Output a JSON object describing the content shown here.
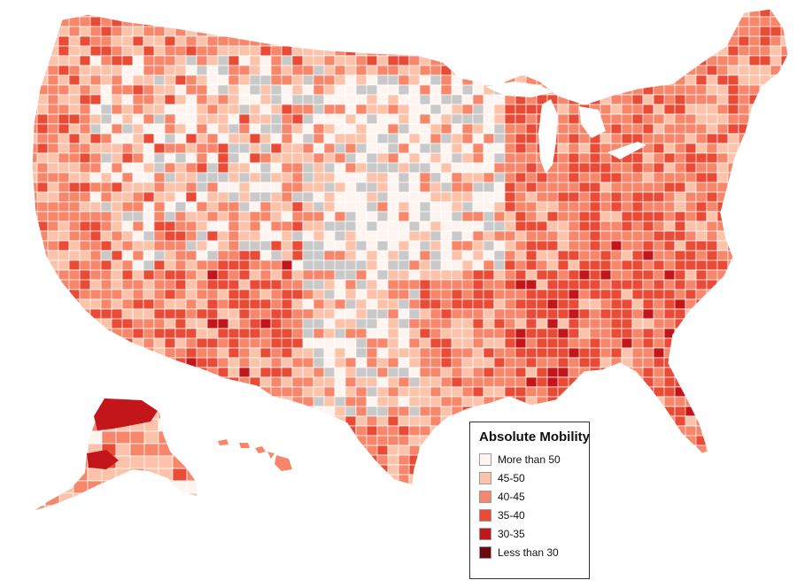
{
  "legend": {
    "title": "Absolute Mobility",
    "items": [
      {
        "label": "More than 50",
        "color": "#fff5f0"
      },
      {
        "label": "45-50",
        "color": "#fcc2aa"
      },
      {
        "label": "40-45",
        "color": "#f7866a"
      },
      {
        "label": "35-40",
        "color": "#ea4b36"
      },
      {
        "label": "30-35",
        "color": "#c3161b"
      },
      {
        "label": "Less than 30",
        "color": "#6b0a0e"
      }
    ],
    "no_data_color": "#c9c9c9"
  }
}
